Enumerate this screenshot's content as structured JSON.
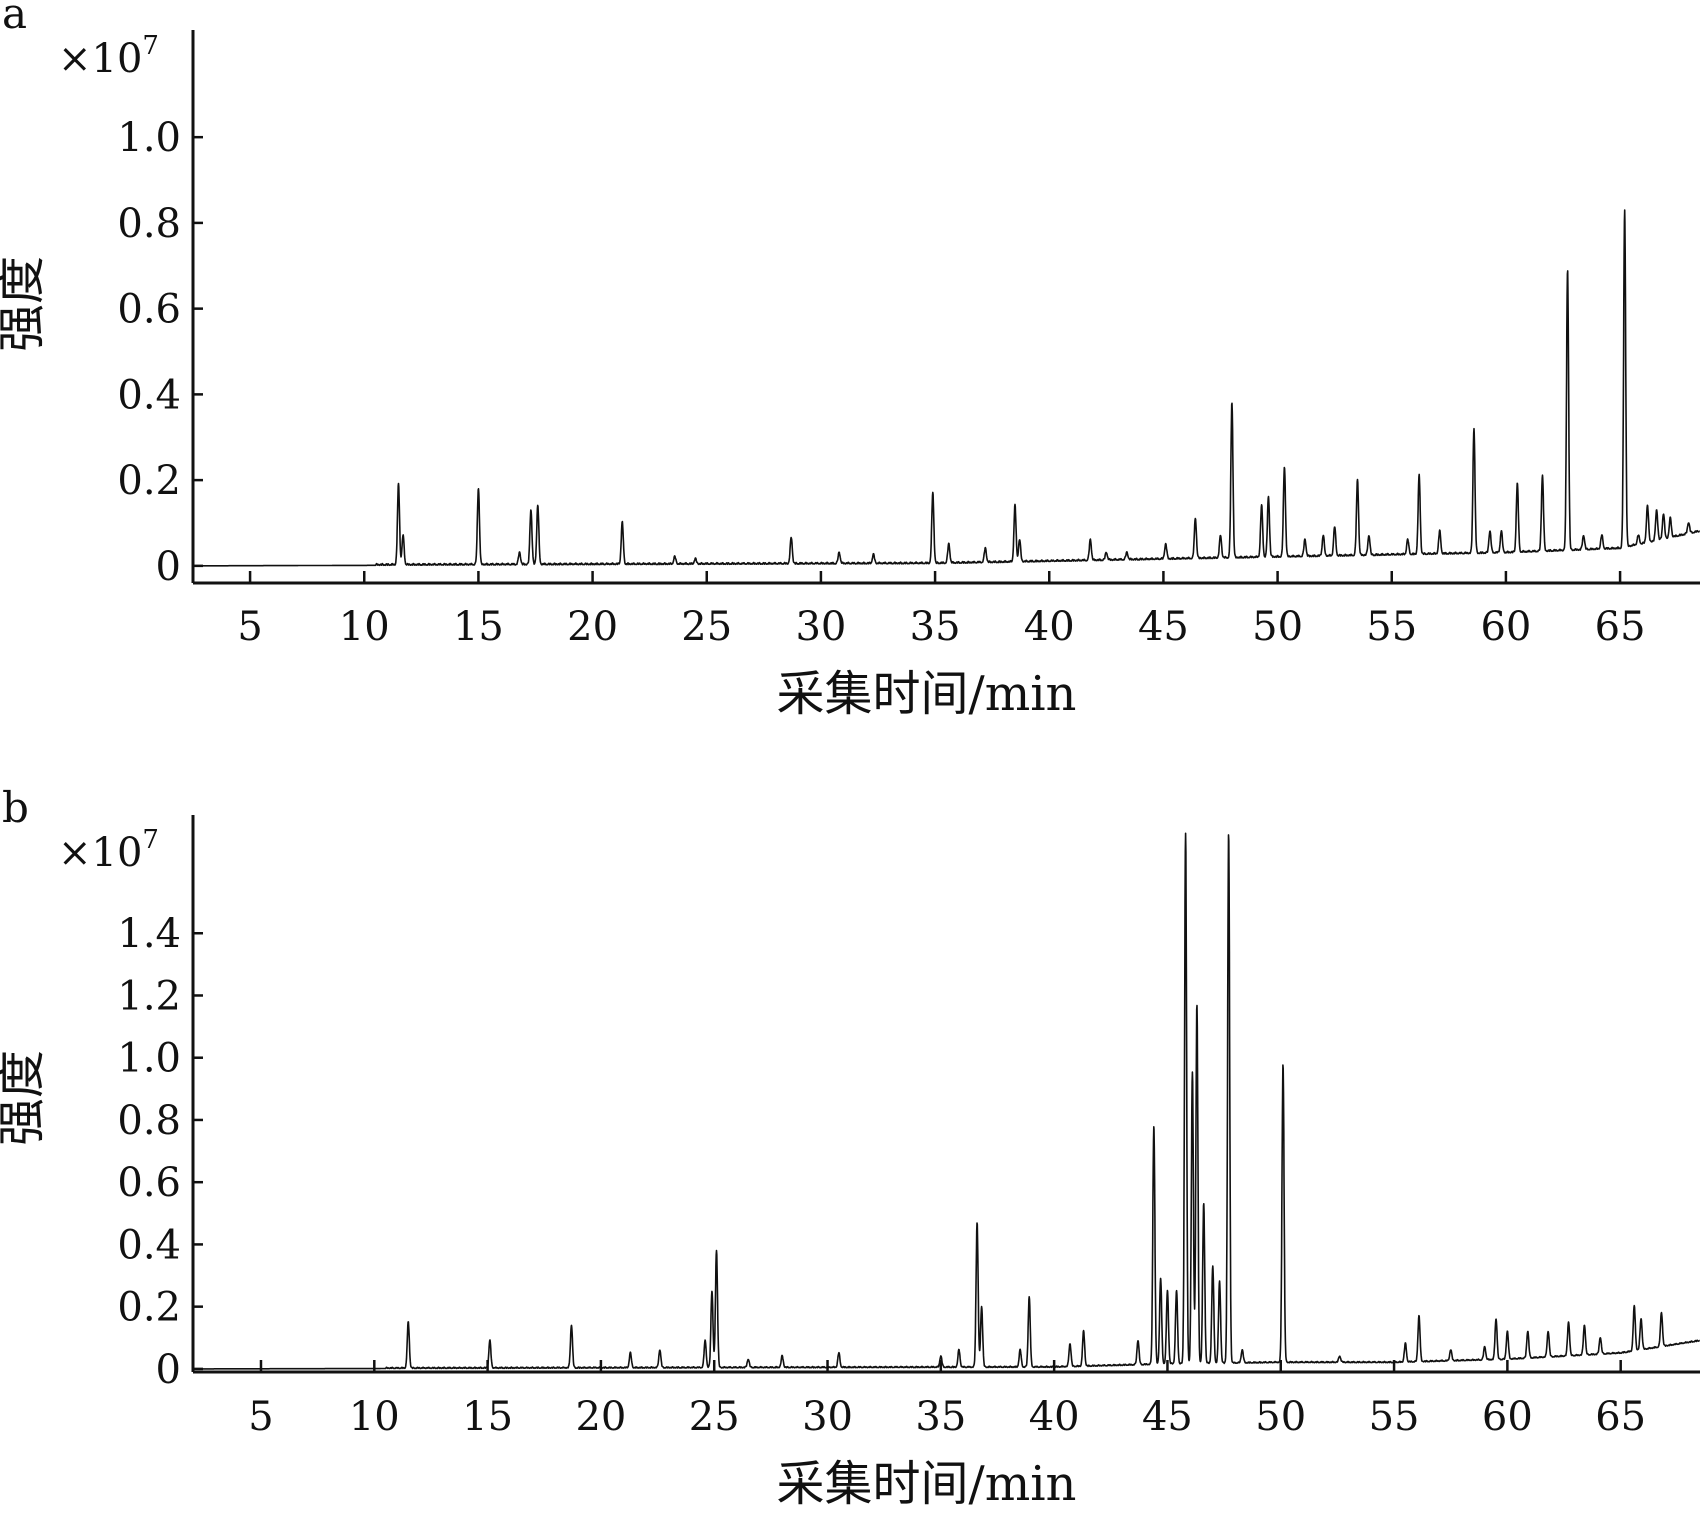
{
  "chart_data": [
    {
      "panel_label": "a",
      "type": "line",
      "multiplier": "×10",
      "multiplier_exp": "7",
      "xlabel": "采集时间/min",
      "ylabel": "强度",
      "xlim": [
        2.5,
        68.5
      ],
      "ylim": [
        -0.04,
        1.25
      ],
      "xticks": [
        5,
        10,
        15,
        20,
        25,
        30,
        35,
        40,
        45,
        50,
        55,
        60,
        65
      ],
      "yticks": [
        0,
        0.2,
        0.4,
        0.6,
        0.8,
        1.0
      ],
      "ytick_labels": [
        "0",
        "0.2",
        "0.4",
        "0.6",
        "0.8",
        "1.0"
      ],
      "grid": false,
      "baseline": [
        [
          2.5,
          0.0
        ],
        [
          35,
          0.005
        ],
        [
          40,
          0.01
        ],
        [
          45,
          0.015
        ],
        [
          50,
          0.02
        ],
        [
          55,
          0.025
        ],
        [
          60,
          0.03
        ],
        [
          65,
          0.04
        ],
        [
          68.5,
          0.08
        ]
      ],
      "peaks": [
        [
          11.5,
          0.19
        ],
        [
          11.7,
          0.07
        ],
        [
          15.0,
          0.18
        ],
        [
          17.3,
          0.13
        ],
        [
          17.6,
          0.14
        ],
        [
          16.8,
          0.03
        ],
        [
          21.3,
          0.1
        ],
        [
          23.6,
          0.02
        ],
        [
          24.5,
          0.015
        ],
        [
          28.7,
          0.065
        ],
        [
          30.8,
          0.03
        ],
        [
          32.3,
          0.025
        ],
        [
          34.9,
          0.17
        ],
        [
          35.6,
          0.05
        ],
        [
          37.2,
          0.04
        ],
        [
          38.5,
          0.14
        ],
        [
          38.7,
          0.06
        ],
        [
          41.8,
          0.06
        ],
        [
          42.5,
          0.03
        ],
        [
          43.4,
          0.03
        ],
        [
          45.1,
          0.05
        ],
        [
          46.4,
          0.11
        ],
        [
          47.5,
          0.07
        ],
        [
          48.0,
          0.38
        ],
        [
          49.3,
          0.14
        ],
        [
          49.6,
          0.16
        ],
        [
          50.3,
          0.23
        ],
        [
          51.2,
          0.06
        ],
        [
          52.0,
          0.07
        ],
        [
          52.5,
          0.09
        ],
        [
          53.5,
          0.2
        ],
        [
          54.0,
          0.07
        ],
        [
          55.7,
          0.06
        ],
        [
          56.2,
          0.21
        ],
        [
          57.1,
          0.08
        ],
        [
          58.6,
          0.32
        ],
        [
          59.3,
          0.08
        ],
        [
          59.8,
          0.08
        ],
        [
          60.5,
          0.19
        ],
        [
          61.6,
          0.21
        ],
        [
          62.7,
          0.69
        ],
        [
          63.4,
          0.07
        ],
        [
          64.2,
          0.07
        ],
        [
          65.2,
          0.83
        ],
        [
          65.8,
          0.07
        ],
        [
          66.2,
          0.14
        ],
        [
          66.6,
          0.13
        ],
        [
          66.9,
          0.12
        ],
        [
          67.2,
          0.11
        ],
        [
          68.0,
          0.1
        ]
      ]
    },
    {
      "panel_label": "b",
      "type": "line",
      "multiplier": "×10",
      "multiplier_exp": "7",
      "xlabel": "采集时间/min",
      "ylabel": "强度",
      "xlim": [
        2.0,
        68.5
      ],
      "ylim": [
        -0.01,
        1.78
      ],
      "xticks": [
        5,
        10,
        15,
        20,
        25,
        30,
        35,
        40,
        45,
        50,
        55,
        60,
        65
      ],
      "yticks": [
        0,
        0.2,
        0.4,
        0.6,
        0.8,
        1.0,
        1.2,
        1.4
      ],
      "ytick_labels": [
        "0",
        "0.2",
        "0.4",
        "0.6",
        "0.8",
        "1.0",
        "1.2",
        "1.4"
      ],
      "grid": false,
      "baseline": [
        [
          2.0,
          0.0
        ],
        [
          40,
          0.005
        ],
        [
          45,
          0.015
        ],
        [
          50,
          0.02
        ],
        [
          55,
          0.02
        ],
        [
          60,
          0.03
        ],
        [
          65,
          0.05
        ],
        [
          68.5,
          0.09
        ]
      ],
      "peaks": [
        [
          11.5,
          0.15
        ],
        [
          15.1,
          0.09
        ],
        [
          18.7,
          0.14
        ],
        [
          21.3,
          0.05
        ],
        [
          22.6,
          0.06
        ],
        [
          24.6,
          0.09
        ],
        [
          24.9,
          0.25
        ],
        [
          25.1,
          0.38
        ],
        [
          26.5,
          0.03
        ],
        [
          28.0,
          0.04
        ],
        [
          30.5,
          0.05
        ],
        [
          35.0,
          0.04
        ],
        [
          35.8,
          0.06
        ],
        [
          36.6,
          0.47
        ],
        [
          36.8,
          0.2
        ],
        [
          38.5,
          0.06
        ],
        [
          38.9,
          0.23
        ],
        [
          40.7,
          0.08
        ],
        [
          41.3,
          0.12
        ],
        [
          43.7,
          0.09
        ],
        [
          44.4,
          0.78
        ],
        [
          44.7,
          0.29
        ],
        [
          45.0,
          0.25
        ],
        [
          45.4,
          0.25
        ],
        [
          45.8,
          1.72
        ],
        [
          46.1,
          0.95
        ],
        [
          46.3,
          1.17
        ],
        [
          46.6,
          0.53
        ],
        [
          47.0,
          0.33
        ],
        [
          47.3,
          0.28
        ],
        [
          47.7,
          1.72
        ],
        [
          48.3,
          0.06
        ],
        [
          50.1,
          0.98
        ],
        [
          52.6,
          0.04
        ],
        [
          55.5,
          0.08
        ],
        [
          56.1,
          0.17
        ],
        [
          57.5,
          0.06
        ],
        [
          59.0,
          0.07
        ],
        [
          59.5,
          0.16
        ],
        [
          60.0,
          0.12
        ],
        [
          60.9,
          0.12
        ],
        [
          61.8,
          0.12
        ],
        [
          62.7,
          0.15
        ],
        [
          63.4,
          0.14
        ],
        [
          64.1,
          0.1
        ],
        [
          65.6,
          0.2
        ],
        [
          65.9,
          0.16
        ],
        [
          66.8,
          0.18
        ]
      ]
    }
  ]
}
